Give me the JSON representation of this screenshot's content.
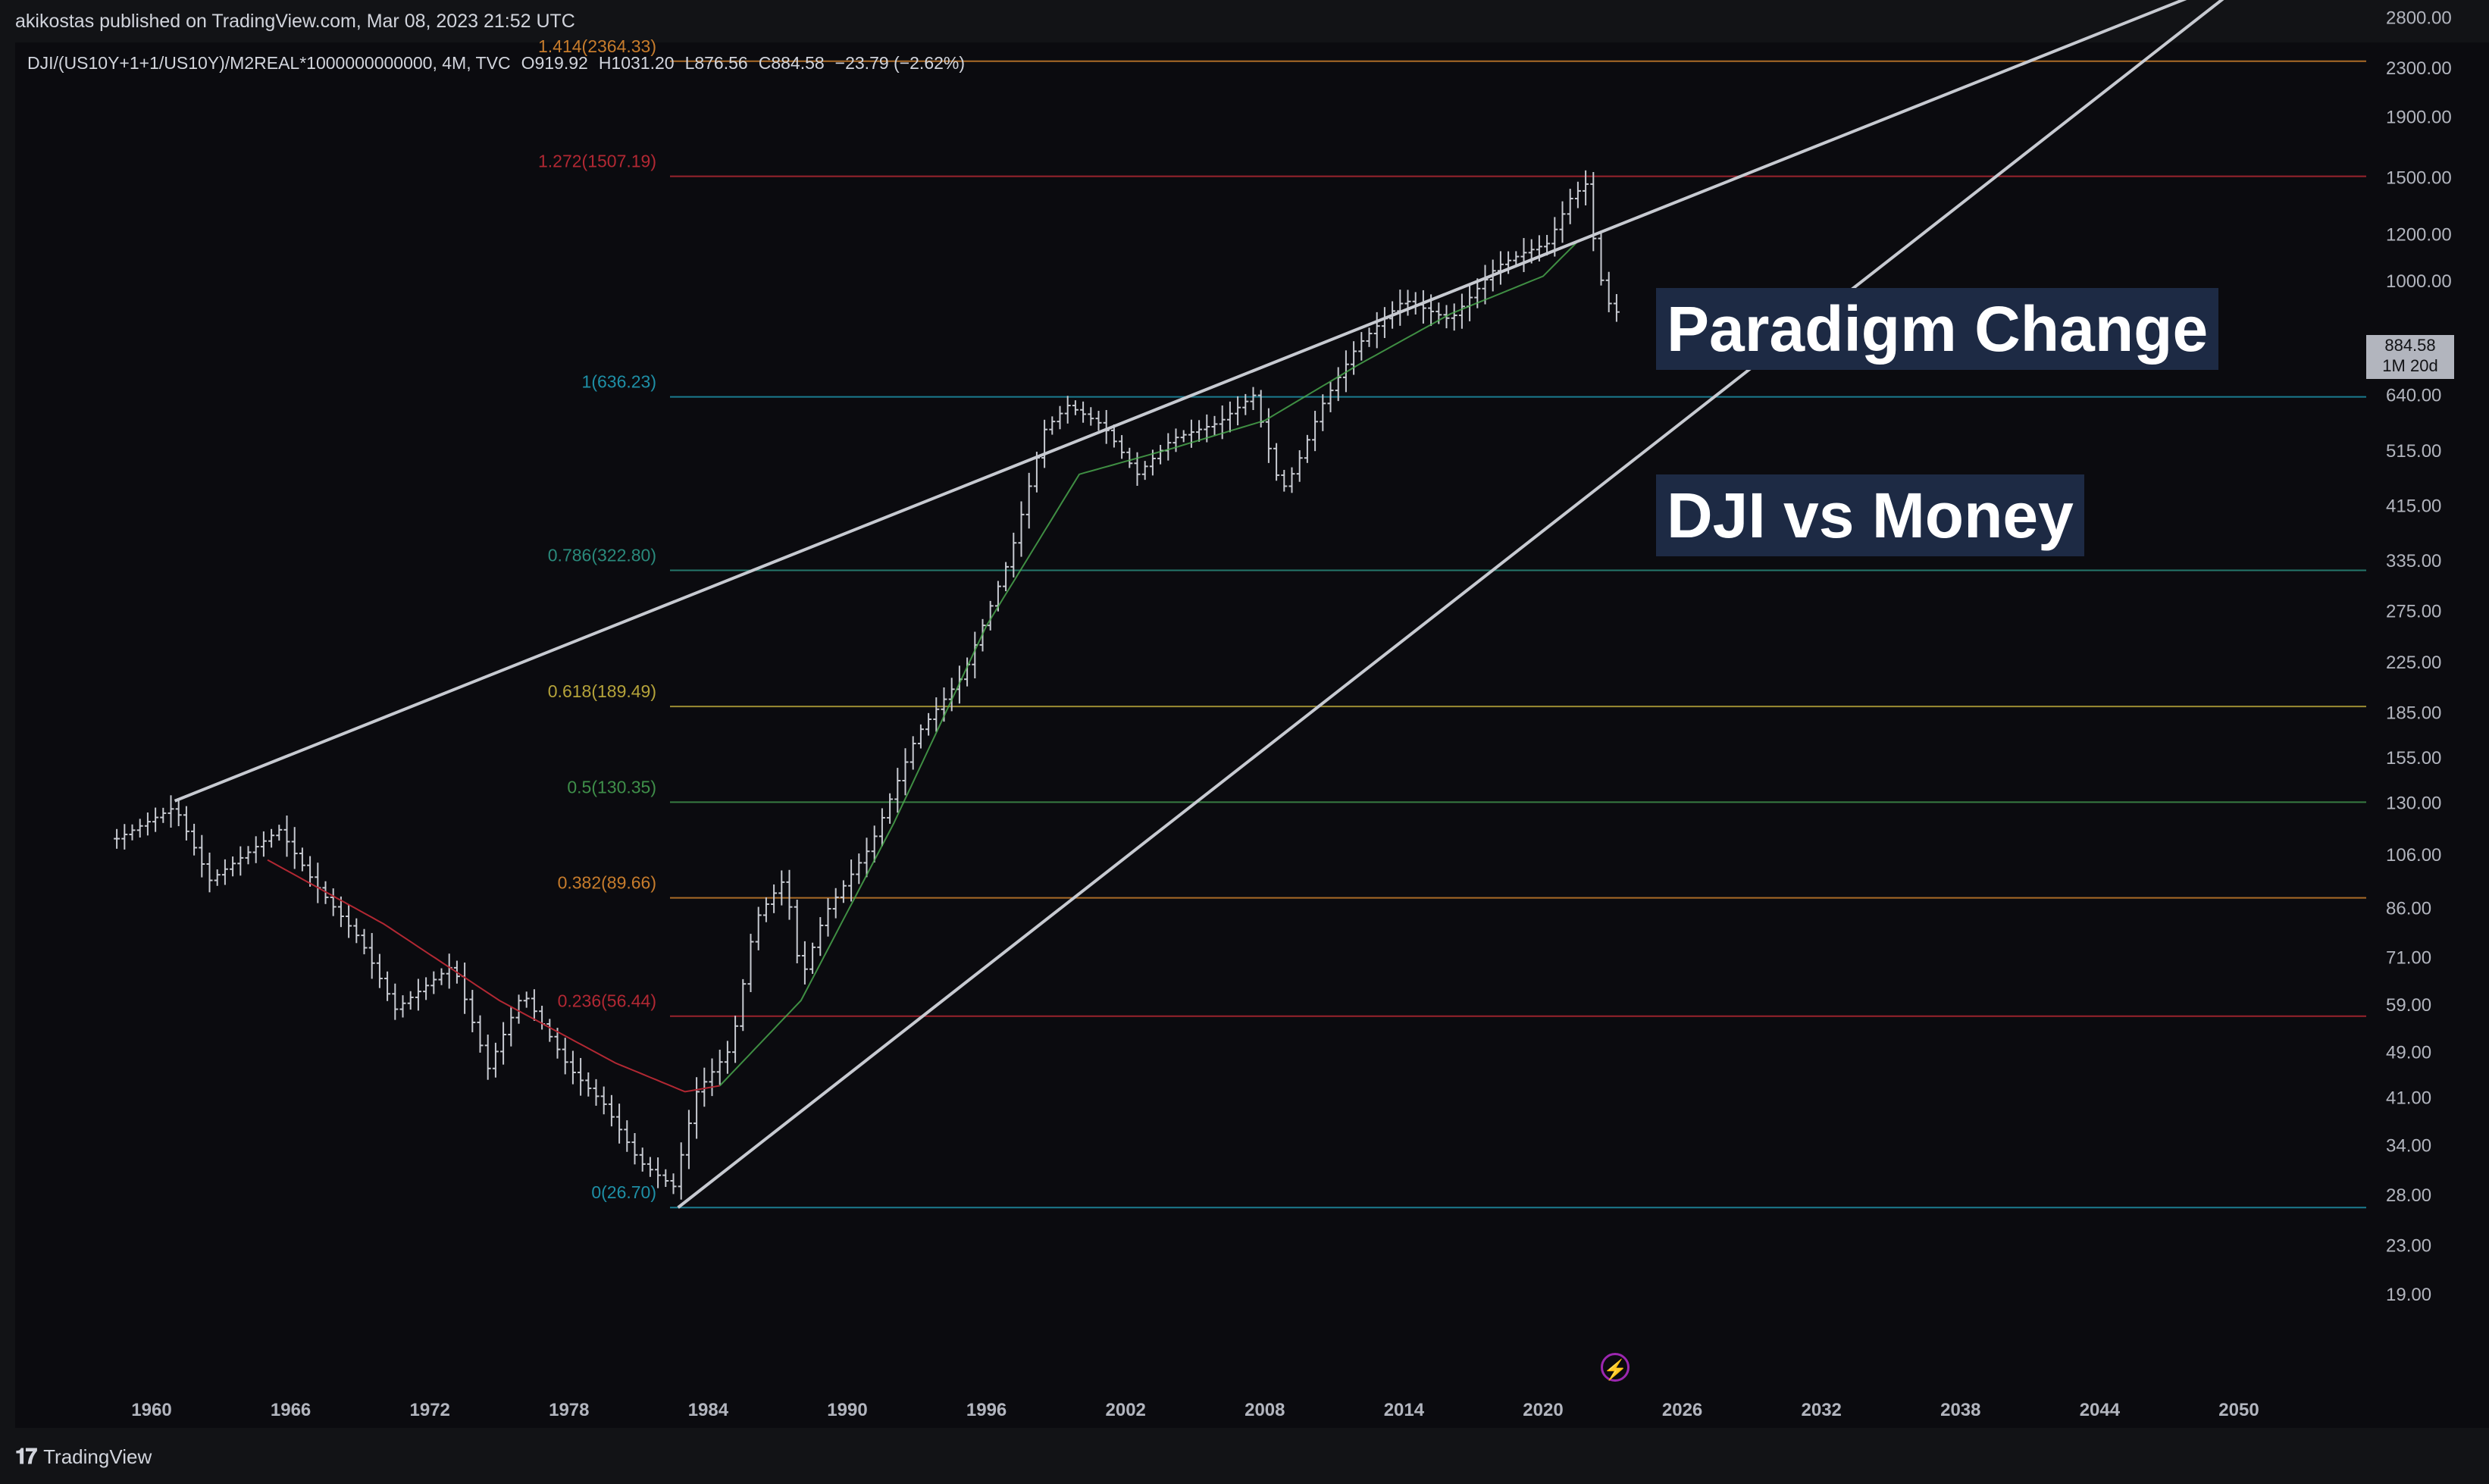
{
  "publisher_line": "akikostas published on TradingView.com, Mar 08, 2023 21:52 UTC",
  "header": {
    "symbol": "DJI/(US10Y+1+1/US10Y)/M2REAL*1000000000000, 4M, TVC",
    "open": "O919.92",
    "high": "H1031.20",
    "low": "L876.56",
    "close": "C884.58",
    "change": "−23.79 (−2.62%)"
  },
  "notes": [
    "Paradigm Change",
    "DJI vs Money"
  ],
  "last_price": {
    "value": "884.58",
    "countdown": "1M 20d"
  },
  "footer_brand": "TradingView",
  "colors": {
    "up_bar": "#b2b5be",
    "ma_green": "#4caf50",
    "ma_red": "#b22833",
    "trendline": "#b2b5be",
    "note_bg": "#1d2a44",
    "flash": "#9c27b0"
  },
  "chart_data": {
    "type": "ohlc",
    "scale": "log",
    "y_ticks": [
      "2800.00",
      "2300.00",
      "1900.00",
      "1500.00",
      "1200.00",
      "1000.00",
      "640.00",
      "515.00",
      "415.00",
      "335.00",
      "275.00",
      "225.00",
      "185.00",
      "155.00",
      "130.00",
      "106.00",
      "86.00",
      "71.00",
      "59.00",
      "49.00",
      "41.00",
      "34.00",
      "28.00",
      "23.00",
      "19.00"
    ],
    "x_ticks": [
      "1960",
      "1966",
      "1972",
      "1978",
      "1984",
      "1990",
      "1996",
      "2002",
      "2008",
      "2014",
      "2020",
      "2026",
      "2032",
      "2038",
      "2044",
      "2050"
    ],
    "fib_levels": [
      {
        "label": "1.414(2364.33)",
        "value": 2364.33,
        "color": "#c77c2c"
      },
      {
        "label": "1.272(1507.19)",
        "value": 1507.19,
        "color": "#b22833"
      },
      {
        "label": "1(636.23)",
        "value": 636.23,
        "color": "#1e8fa6"
      },
      {
        "label": "0.786(322.80)",
        "value": 322.8,
        "color": "#2a8a7c"
      },
      {
        "label": "0.618(189.49)",
        "value": 189.49,
        "color": "#b5a33a"
      },
      {
        "label": "0.5(130.35)",
        "value": 130.35,
        "color": "#3f8f4a"
      },
      {
        "label": "0.382(89.66)",
        "value": 89.66,
        "color": "#c77c2c"
      },
      {
        "label": "0.236(56.44)",
        "value": 56.44,
        "color": "#b22833"
      },
      {
        "label": "0(26.70)",
        "value": 26.7,
        "color": "#1e8fa6"
      }
    ],
    "series": [
      {
        "name": "DJI/(US10Y+1+1/US10Y)/M2REAL",
        "anchors": [
          [
            1958.5,
            113
          ],
          [
            1961,
            128
          ],
          [
            1962.5,
            96
          ],
          [
            1965.5,
            117
          ],
          [
            1967,
            95
          ],
          [
            1969,
            76
          ],
          [
            1970.5,
            58
          ],
          [
            1973,
            69
          ],
          [
            1974.5,
            46
          ],
          [
            1976,
            62
          ],
          [
            1978,
            46
          ],
          [
            1979.5,
            40
          ],
          [
            1981,
            32
          ],
          [
            1982.5,
            29
          ],
          [
            1983.5,
            42
          ],
          [
            1985,
            50
          ],
          [
            1986,
            82
          ],
          [
            1987.3,
            97
          ],
          [
            1988,
            65
          ],
          [
            1989,
            84
          ],
          [
            1991,
            110
          ],
          [
            1993,
            170
          ],
          [
            1995,
            215
          ],
          [
            1997,
            340
          ],
          [
            1998.5,
            560
          ],
          [
            1999.5,
            615
          ],
          [
            2001,
            570
          ],
          [
            2002.5,
            470
          ],
          [
            2004,
            540
          ],
          [
            2006,
            575
          ],
          [
            2007.5,
            640
          ],
          [
            2008.7,
            440
          ],
          [
            2009.3,
            480
          ],
          [
            2010.5,
            620
          ],
          [
            2012,
            780
          ],
          [
            2014,
            930
          ],
          [
            2016,
            860
          ],
          [
            2018,
            1060
          ],
          [
            2019.2,
            1120
          ],
          [
            2020.2,
            1160
          ],
          [
            2021.2,
            1390
          ],
          [
            2021.9,
            1470
          ],
          [
            2022.3,
            1060
          ],
          [
            2022.9,
            900
          ],
          [
            2023.2,
            885
          ]
        ]
      },
      {
        "name": "MA green",
        "anchors": [
          [
            1984.5,
            43
          ],
          [
            1988,
            60
          ],
          [
            1992,
            120
          ],
          [
            1996,
            260
          ],
          [
            2000,
            470
          ],
          [
            2004,
            520
          ],
          [
            2008,
            580
          ],
          [
            2012,
            720
          ],
          [
            2016,
            880
          ],
          [
            2020,
            1020
          ],
          [
            2021.6,
            1180
          ]
        ]
      },
      {
        "name": "MA red",
        "anchors": [
          [
            1965,
            104
          ],
          [
            1970,
            81
          ],
          [
            1975,
            60
          ],
          [
            1980,
            47
          ],
          [
            1983,
            42
          ],
          [
            1984.5,
            43
          ]
        ]
      }
    ],
    "trendlines": [
      {
        "from": [
          1961,
          131
        ],
        "to": [
          2051,
          3400
        ]
      },
      {
        "from": [
          1982.7,
          26.7
        ],
        "to": [
          2051,
          3400
        ]
      }
    ]
  }
}
